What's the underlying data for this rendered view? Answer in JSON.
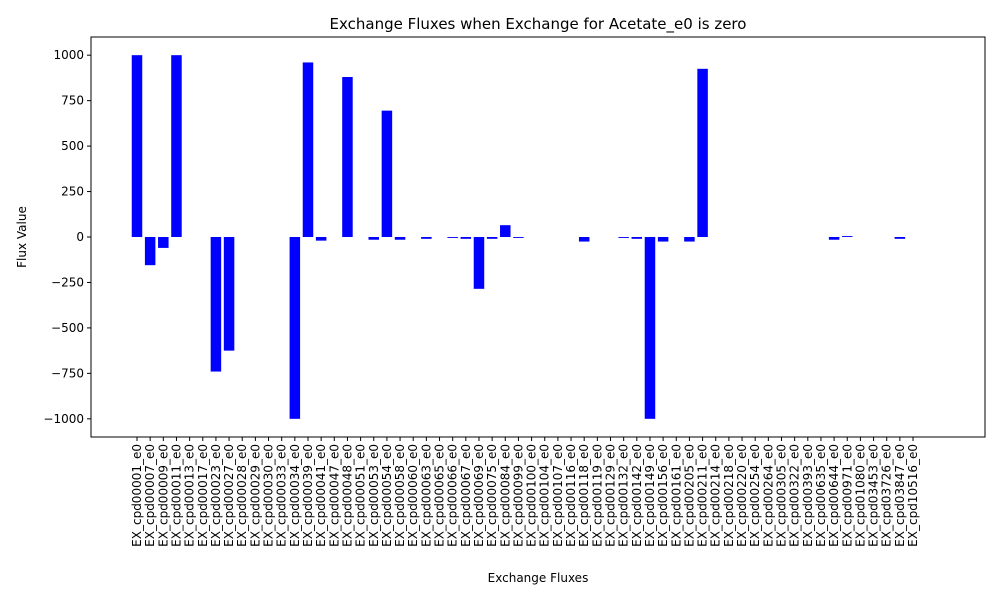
{
  "chart_data": {
    "type": "bar",
    "title": "Exchange Fluxes when Exchange for Acetate_e0 is zero",
    "xlabel": "Exchange Fluxes",
    "ylabel": "Flux Value",
    "ylim": [
      -1100,
      1100
    ],
    "yticks": [
      -1000,
      -750,
      -500,
      -250,
      0,
      250,
      500,
      750,
      1000
    ],
    "ytick_labels": [
      "−1000",
      "−750",
      "−500",
      "−250",
      "0",
      "250",
      "500",
      "750",
      "1000"
    ],
    "bar_color": "#0000ff",
    "grid": false,
    "categories": [
      "EX_cpd00001_e0",
      "EX_cpd00007_e0",
      "EX_cpd00009_e0",
      "EX_cpd00011_e0",
      "EX_cpd00013_e0",
      "EX_cpd00017_e0",
      "EX_cpd00023_e0",
      "EX_cpd00027_e0",
      "EX_cpd00028_e0",
      "EX_cpd00029_e0",
      "EX_cpd00030_e0",
      "EX_cpd00033_e0",
      "EX_cpd00034_e0",
      "EX_cpd00039_e0",
      "EX_cpd00041_e0",
      "EX_cpd00047_e0",
      "EX_cpd00048_e0",
      "EX_cpd00051_e0",
      "EX_cpd00053_e0",
      "EX_cpd00054_e0",
      "EX_cpd00058_e0",
      "EX_cpd00060_e0",
      "EX_cpd00063_e0",
      "EX_cpd00065_e0",
      "EX_cpd00066_e0",
      "EX_cpd00067_e0",
      "EX_cpd00069_e0",
      "EX_cpd00075_e0",
      "EX_cpd00084_e0",
      "EX_cpd00099_e0",
      "EX_cpd00100_e0",
      "EX_cpd00104_e0",
      "EX_cpd00107_e0",
      "EX_cpd00116_e0",
      "EX_cpd00118_e0",
      "EX_cpd00119_e0",
      "EX_cpd00129_e0",
      "EX_cpd00132_e0",
      "EX_cpd00142_e0",
      "EX_cpd00149_e0",
      "EX_cpd00156_e0",
      "EX_cpd00161_e0",
      "EX_cpd00205_e0",
      "EX_cpd00211_e0",
      "EX_cpd00214_e0",
      "EX_cpd00218_e0",
      "EX_cpd00220_e0",
      "EX_cpd00254_e0",
      "EX_cpd00264_e0",
      "EX_cpd00305_e0",
      "EX_cpd00322_e0",
      "EX_cpd00393_e0",
      "EX_cpd00635_e0",
      "EX_cpd00644_e0",
      "EX_cpd00971_e0",
      "EX_cpd01080_e0",
      "EX_cpd03453_e0",
      "EX_cpd03726_e0",
      "EX_cpd03847_e0",
      "EX_cpd10516_e0"
    ],
    "values": [
      1000,
      -155,
      -60,
      1000,
      0,
      0,
      -740,
      -625,
      0,
      0,
      0,
      0,
      -1000,
      960,
      -20,
      0,
      880,
      0,
      -15,
      695,
      -15,
      0,
      -10,
      0,
      -5,
      -10,
      -285,
      -10,
      65,
      -5,
      0,
      0,
      0,
      0,
      -25,
      0,
      0,
      -5,
      -10,
      -1000,
      -25,
      0,
      -25,
      925,
      0,
      0,
      0,
      0,
      0,
      0,
      0,
      0,
      0,
      -15,
      5,
      0,
      0,
      0,
      -10,
      0
    ]
  }
}
